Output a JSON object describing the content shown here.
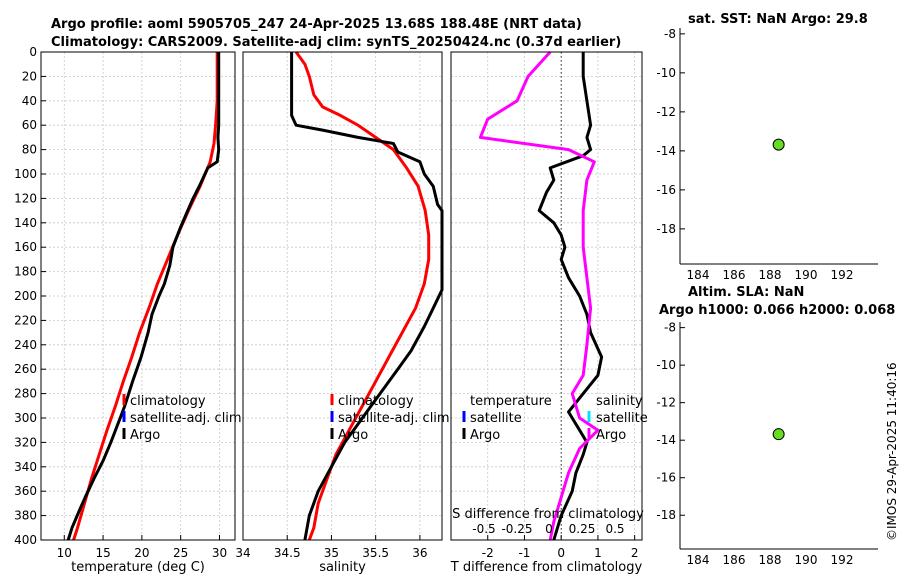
{
  "title_line1": "Argo profile: aoml 5905705_247 24-Apr-2025 13.68S 188.48E (NRT data)",
  "title_line2": "Climatology: CARS2009. Satellite-adj clim: synTS_20250424.nc (0.37d earlier)",
  "timestamp": "©IMOS 29-Apr-2025 11:40:16",
  "colors": {
    "climatology": "#ff0000",
    "satellite": "#0000ff",
    "argo": "#000000",
    "argo_salt_diff": "#ff00ff",
    "sat_salt": "#00e5ff",
    "dot": "#66dd22"
  },
  "chart_data": [
    {
      "type": "line",
      "id": "temperature",
      "xlabel": "temperature (deg C)",
      "xlim": [
        7,
        32
      ],
      "ylim": [
        400,
        0
      ],
      "x_ticks": [
        "10",
        "15",
        "20",
        "25",
        "30"
      ],
      "y_ticks": [
        "0",
        "20",
        "40",
        "60",
        "80",
        "100",
        "120",
        "140",
        "160",
        "180",
        "200",
        "220",
        "240",
        "260",
        "280",
        "300",
        "320",
        "340",
        "360",
        "380",
        "400"
      ],
      "legend": [
        "climatology",
        "satellite-adj. clim",
        "Argo"
      ],
      "series": [
        {
          "name": "climatology",
          "color": "#ff0000",
          "points": [
            [
              29.7,
              0
            ],
            [
              29.7,
              20
            ],
            [
              29.7,
              40
            ],
            [
              29.5,
              60
            ],
            [
              29.3,
              75
            ],
            [
              28.8,
              90
            ],
            [
              27.5,
              110
            ],
            [
              26.0,
              130
            ],
            [
              24.6,
              150
            ],
            [
              23.3,
              170
            ],
            [
              22.0,
              190
            ],
            [
              20.9,
              210
            ],
            [
              19.7,
              230
            ],
            [
              18.7,
              250
            ],
            [
              17.6,
              270
            ],
            [
              16.6,
              290
            ],
            [
              15.5,
              310
            ],
            [
              14.5,
              330
            ],
            [
              13.5,
              350
            ],
            [
              12.6,
              370
            ],
            [
              11.7,
              390
            ],
            [
              11.2,
              400
            ]
          ]
        },
        {
          "name": "Argo",
          "color": "#000000",
          "points": [
            [
              29.9,
              0
            ],
            [
              29.9,
              20
            ],
            [
              29.9,
              40
            ],
            [
              29.9,
              60
            ],
            [
              29.8,
              70
            ],
            [
              29.9,
              80
            ],
            [
              29.7,
              90
            ],
            [
              28.5,
              95
            ],
            [
              27.4,
              110
            ],
            [
              26.6,
              120
            ],
            [
              25.9,
              130
            ],
            [
              24.9,
              145
            ],
            [
              24.0,
              160
            ],
            [
              23.6,
              175
            ],
            [
              22.9,
              190
            ],
            [
              22.2,
              200
            ],
            [
              21.3,
              215
            ],
            [
              20.8,
              230
            ],
            [
              19.9,
              250
            ],
            [
              18.8,
              270
            ],
            [
              17.8,
              290
            ],
            [
              17.2,
              300
            ],
            [
              16.0,
              320
            ],
            [
              15.0,
              335
            ],
            [
              13.8,
              350
            ],
            [
              12.7,
              365
            ],
            [
              12.0,
              375
            ],
            [
              11.0,
              390
            ],
            [
              10.5,
              400
            ]
          ]
        }
      ]
    },
    {
      "type": "line",
      "id": "salinity",
      "xlabel": "salinity",
      "xlim": [
        34,
        36.25
      ],
      "ylim": [
        400,
        0
      ],
      "x_ticks": [
        "34",
        "34.5",
        "35",
        "35.5",
        "36"
      ],
      "legend": [
        "climatology",
        "satellite-adj. clim",
        "Argo"
      ],
      "series": [
        {
          "name": "climatology",
          "color": "#ff0000",
          "points": [
            [
              34.6,
              0
            ],
            [
              34.7,
              10
            ],
            [
              34.75,
              20
            ],
            [
              34.8,
              35
            ],
            [
              34.9,
              45
            ],
            [
              35.1,
              52
            ],
            [
              35.3,
              60
            ],
            [
              35.5,
              70
            ],
            [
              35.7,
              80
            ],
            [
              35.85,
              95
            ],
            [
              35.98,
              110
            ],
            [
              36.06,
              130
            ],
            [
              36.1,
              150
            ],
            [
              36.1,
              170
            ],
            [
              36.05,
              190
            ],
            [
              35.95,
              210
            ],
            [
              35.8,
              230
            ],
            [
              35.65,
              250
            ],
            [
              35.5,
              270
            ],
            [
              35.35,
              290
            ],
            [
              35.2,
              310
            ],
            [
              35.05,
              330
            ],
            [
              34.95,
              350
            ],
            [
              34.85,
              370
            ],
            [
              34.8,
              390
            ],
            [
              34.75,
              400
            ]
          ]
        },
        {
          "name": "Argo",
          "color": "#000000",
          "points": [
            [
              34.55,
              0
            ],
            [
              34.55,
              20
            ],
            [
              34.55,
              40
            ],
            [
              34.55,
              52
            ],
            [
              34.6,
              60
            ],
            [
              34.9,
              64
            ],
            [
              35.3,
              70
            ],
            [
              35.7,
              75
            ],
            [
              35.75,
              82
            ],
            [
              36.0,
              90
            ],
            [
              36.05,
              100
            ],
            [
              36.15,
              110
            ],
            [
              36.2,
              125
            ],
            [
              36.25,
              130
            ],
            [
              36.25,
              195
            ],
            [
              36.15,
              210
            ],
            [
              36.05,
              225
            ],
            [
              35.9,
              245
            ],
            [
              35.75,
              260
            ],
            [
              35.6,
              275
            ],
            [
              35.45,
              290
            ],
            [
              35.3,
              305
            ],
            [
              35.15,
              320
            ],
            [
              35.0,
              340
            ],
            [
              34.85,
              360
            ],
            [
              34.75,
              380
            ],
            [
              34.7,
              400
            ]
          ]
        }
      ]
    },
    {
      "type": "line",
      "id": "differences",
      "xlabel": "T difference from climatology",
      "xlabel_top": "S difference from climatology",
      "xlim": [
        -3,
        2.2
      ],
      "ylim": [
        400,
        0
      ],
      "x_ticks": [
        "-2",
        "-1",
        "0",
        "1",
        "2"
      ],
      "x_ticks_top": [
        "-0.5",
        "-0.25",
        "0",
        "0.25",
        "0.5"
      ],
      "legend_temperature": {
        "title": "temperature",
        "items": [
          "satellite",
          "Argo"
        ]
      },
      "legend_salinity": {
        "title": "salinity",
        "items": [
          "satellite",
          "Argo"
        ]
      },
      "series": [
        {
          "name": "T Argo - clim",
          "color": "#000000",
          "points": [
            [
              0.6,
              0
            ],
            [
              0.6,
              20
            ],
            [
              0.7,
              40
            ],
            [
              0.8,
              60
            ],
            [
              0.7,
              70
            ],
            [
              0.8,
              80
            ],
            [
              0.6,
              85
            ],
            [
              -0.3,
              95
            ],
            [
              -0.2,
              105
            ],
            [
              -0.4,
              115
            ],
            [
              -0.6,
              130
            ],
            [
              -0.2,
              140
            ],
            [
              0.0,
              150
            ],
            [
              0.1,
              160
            ],
            [
              0.0,
              170
            ],
            [
              0.2,
              185
            ],
            [
              0.5,
              200
            ],
            [
              0.7,
              215
            ],
            [
              0.8,
              230
            ],
            [
              1.1,
              250
            ],
            [
              1.0,
              265
            ],
            [
              0.6,
              280
            ],
            [
              0.2,
              295
            ],
            [
              0.5,
              310
            ],
            [
              0.7,
              320
            ],
            [
              0.6,
              330
            ],
            [
              0.4,
              345
            ],
            [
              0.3,
              360
            ],
            [
              0.0,
              380
            ],
            [
              -0.2,
              400
            ]
          ]
        },
        {
          "name": "S Argo - clim",
          "color": "#ff00ff",
          "points": [
            [
              -0.3,
              0
            ],
            [
              -0.9,
              20
            ],
            [
              -1.2,
              40
            ],
            [
              -2.0,
              55
            ],
            [
              -2.2,
              70
            ],
            [
              0.2,
              80
            ],
            [
              0.9,
              90
            ],
            [
              0.7,
              105
            ],
            [
              0.6,
              130
            ],
            [
              0.6,
              160
            ],
            [
              0.7,
              185
            ],
            [
              0.8,
              210
            ],
            [
              0.7,
              240
            ],
            [
              0.6,
              265
            ],
            [
              0.3,
              280
            ],
            [
              0.5,
              300
            ],
            [
              1.0,
              310
            ],
            [
              0.5,
              325
            ],
            [
              0.2,
              345
            ],
            [
              0.0,
              365
            ],
            [
              -0.2,
              385
            ],
            [
              -0.3,
              400
            ]
          ]
        }
      ]
    },
    {
      "type": "scatter",
      "id": "sst_map",
      "title": "sat. SST: NaN Argo: 29.8",
      "xlim": [
        183,
        194
      ],
      "ylim": [
        -19.8,
        -7.7
      ],
      "x_ticks": [
        "184",
        "186",
        "188",
        "190",
        "192"
      ],
      "y_ticks": [
        "-8",
        "-10",
        "-12",
        "-14",
        "-16",
        "-18"
      ],
      "points": [
        [
          188.48,
          -13.68
        ]
      ]
    },
    {
      "type": "scatter",
      "id": "sla_map",
      "title": "Altim. SLA: NaN",
      "subtitle": "Argo h1000: 0.066 h2000: 0.068",
      "xlim": [
        183,
        194
      ],
      "ylim": [
        -19.8,
        -7.7
      ],
      "x_ticks": [
        "184",
        "186",
        "188",
        "190",
        "192"
      ],
      "y_ticks": [
        "-8",
        "-10",
        "-12",
        "-14",
        "-16",
        "-18"
      ],
      "points": [
        [
          188.48,
          -13.68
        ]
      ]
    }
  ]
}
